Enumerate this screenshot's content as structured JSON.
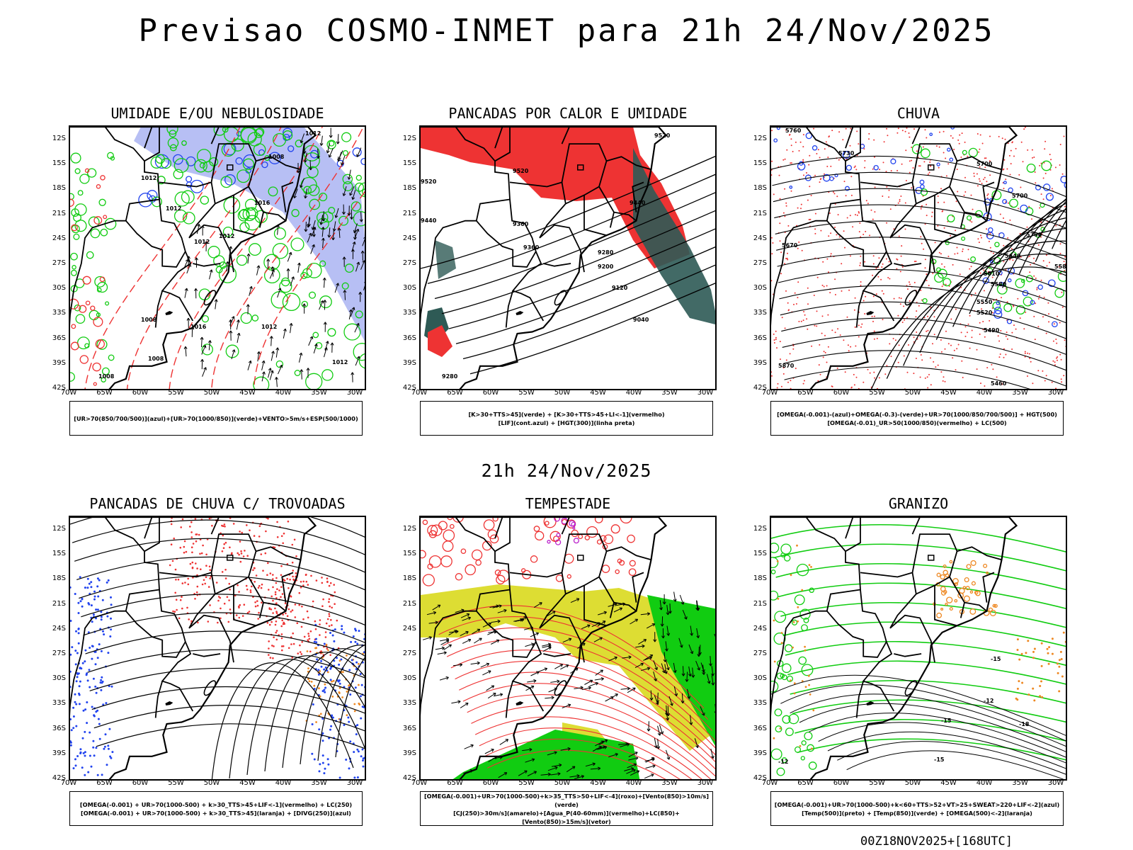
{
  "title": "Previsao COSMO-INMET  para 21h 24/Nov/2025",
  "subtitle": "21h 24/Nov/2025",
  "footer": "00Z18NOV2025+[168UTC]",
  "lat_ticks": [
    "12S",
    "15S",
    "18S",
    "21S",
    "24S",
    "27S",
    "30S",
    "33S",
    "36S",
    "39S",
    "42S"
  ],
  "lon_ticks": [
    "70W",
    "65W",
    "60W",
    "55W",
    "50W",
    "45W",
    "40W",
    "35W",
    "30W"
  ],
  "panels": [
    {
      "title": "UMIDADE E/OU NEBULOSIDADE",
      "legend": [
        "[UR>70(850/700/500)](azul)+[UR>70(1000/850)](verde)+VENTO>5m/s+ESP(500/1000)"
      ]
    },
    {
      "title": "PANCADAS POR CALOR E UMIDADE",
      "legend": [
        "[K>30+TTS>45](verde) + [K>30+TTS>45+LI<-1](vermelho)",
        "[LIF](cont.azul) + [HGT(300)](linha preta)"
      ]
    },
    {
      "title": "CHUVA",
      "legend": [
        "[OMEGA(-0.001)-(azul)+OMEGA(-0.3)-(verde)+UR>70(1000/850/700/500)] + HGT(500)",
        "[OMEGA(-0.01)_UR>50(1000/850)(vermelho) + LC(500)"
      ]
    },
    {
      "title": "PANCADAS DE CHUVA C/ TROVOADAS",
      "legend": [
        "[OMEGA(-0.001) + UR>70(1000-500) + k>30_TTS>45+LIF<-1](vermelho) + LC(250)",
        "[OMEGA(-0.001) + UR>70(1000-500) + k>30_TTS>45](laranja) + [DIVG(250)](azul)"
      ]
    },
    {
      "title": "TEMPESTADE",
      "legend": [
        "[OMEGA(-0.001)+UR>70(1000-500)+k>35_TTS>50+LIF<-4](roxo)+[Vento(850)>10m/s](verde)",
        "[CJ(250)>30m/s](amarelo)+[Agua_P(40-60mm)](vermelho)+LC(850)+[Vento(850)>15m/s](vetor)"
      ]
    },
    {
      "title": "GRANIZO",
      "legend": [
        "[OMEGA(-0.001)+UR>70(1000-500)+k<60+TTS>52+VT>25+SWEAT>220+LIF<-2](azul)",
        "[Temp(500)](preto) + [Temp(850)](verde) + [OMEGA(500)<-2](laranja)"
      ]
    }
  ],
  "panel_labels": {
    "p1": [
      "1012",
      "1008",
      "1012",
      "1012",
      "1016",
      "1012",
      "1012",
      "1008",
      "1016",
      "1012",
      "1008",
      "1012",
      "1008"
    ],
    "p2": [
      "9520",
      "9520",
      "9520",
      "9440",
      "9440",
      "9360",
      "9360",
      "9280",
      "9200",
      "9120",
      "9040",
      "9280"
    ],
    "p3": [
      "5760",
      "5730",
      "5700",
      "5700",
      "5700",
      "5670",
      "5640",
      "5610",
      "5580",
      "5550",
      "5520",
      "5490",
      "5460",
      "5580",
      "5870"
    ],
    "p6": [
      "-15",
      "-12",
      "-15",
      "-18",
      "-15",
      "-12"
    ]
  },
  "colors": {
    "blue": "#2244ee",
    "green": "#11cc11",
    "red": "#ee3333",
    "orange": "#ee8822",
    "yellow": "#dddd33",
    "teal": "#2e5a55",
    "lightblue": "#aab4f2",
    "purple": "#bb22cc"
  }
}
